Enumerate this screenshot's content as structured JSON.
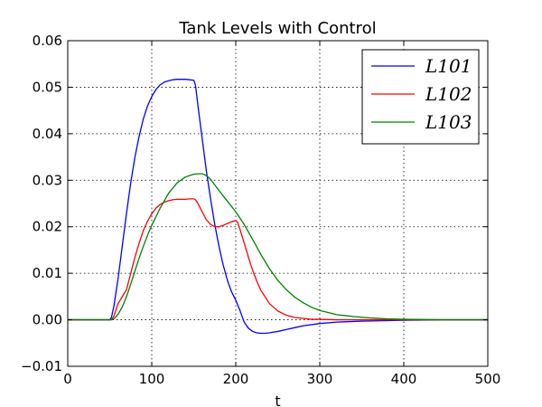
{
  "chart_data": {
    "type": "line",
    "title": "Tank Levels with Control",
    "xlabel": "t",
    "ylabel": "",
    "xlim": [
      0,
      500
    ],
    "ylim": [
      -0.01,
      0.06
    ],
    "xticks": [
      0,
      100,
      200,
      300,
      400,
      500
    ],
    "yticks": [
      -0.01,
      0.0,
      0.01,
      0.02,
      0.03,
      0.04,
      0.05,
      0.06
    ],
    "xtick_labels": [
      "0",
      "100",
      "200",
      "300",
      "400",
      "500"
    ],
    "ytick_labels": [
      "−0.01",
      "0.00",
      "0.01",
      "0.02",
      "0.03",
      "0.04",
      "0.05",
      "0.06"
    ],
    "grid": true,
    "legend_position": "top-right",
    "series": [
      {
        "name": "L101",
        "color": "#0000ff",
        "x": [
          0,
          50,
          52,
          55,
          60,
          65,
          70,
          75,
          80,
          85,
          90,
          95,
          100,
          105,
          110,
          115,
          120,
          125,
          130,
          135,
          140,
          145,
          150,
          152,
          155,
          160,
          165,
          170,
          175,
          180,
          185,
          190,
          195,
          200,
          205,
          210,
          215,
          220,
          225,
          230,
          235,
          240,
          250,
          260,
          270,
          280,
          300,
          320,
          350,
          400,
          450,
          500
        ],
        "y": [
          0,
          0,
          0.0005,
          0.003,
          0.009,
          0.016,
          0.023,
          0.0295,
          0.035,
          0.0395,
          0.0432,
          0.046,
          0.048,
          0.0495,
          0.0505,
          0.0511,
          0.0514,
          0.0516,
          0.0517,
          0.0517,
          0.0517,
          0.0516,
          0.0515,
          0.0505,
          0.046,
          0.039,
          0.032,
          0.026,
          0.0205,
          0.0158,
          0.0118,
          0.0085,
          0.006,
          0.0042,
          0.002,
          -0.0005,
          -0.0018,
          -0.0025,
          -0.0028,
          -0.0029,
          -0.0029,
          -0.0028,
          -0.0025,
          -0.0021,
          -0.0017,
          -0.0013,
          -0.0008,
          -0.0005,
          -0.0003,
          -0.0001,
          0,
          0
        ]
      },
      {
        "name": "L102",
        "color": "#ff0000",
        "x": [
          0,
          52,
          55,
          60,
          65,
          70,
          75,
          80,
          85,
          90,
          95,
          100,
          105,
          110,
          115,
          120,
          125,
          130,
          135,
          140,
          145,
          150,
          152,
          155,
          160,
          165,
          170,
          175,
          180,
          185,
          190,
          195,
          200,
          202,
          205,
          210,
          215,
          220,
          225,
          230,
          240,
          250,
          260,
          270,
          280,
          290,
          300,
          320,
          350,
          400,
          450,
          500
        ],
        "y": [
          0,
          0,
          0.0008,
          0.0035,
          0.005,
          0.0065,
          0.01,
          0.0135,
          0.0165,
          0.0192,
          0.0212,
          0.0228,
          0.024,
          0.0248,
          0.0253,
          0.0256,
          0.0258,
          0.0259,
          0.0259,
          0.0259,
          0.026,
          0.026,
          0.0258,
          0.025,
          0.0232,
          0.0215,
          0.0205,
          0.02,
          0.02,
          0.0203,
          0.0207,
          0.0211,
          0.0213,
          0.021,
          0.0195,
          0.0165,
          0.0135,
          0.0107,
          0.0083,
          0.0063,
          0.0035,
          0.0019,
          0.001,
          0.0005,
          0.0003,
          0.0001,
          0.0001,
          0,
          0,
          0,
          0,
          0
        ]
      },
      {
        "name": "L103",
        "color": "#008000",
        "x": [
          0,
          52,
          55,
          60,
          65,
          70,
          75,
          80,
          85,
          90,
          95,
          100,
          110,
          120,
          130,
          140,
          150,
          155,
          160,
          165,
          170,
          180,
          190,
          200,
          210,
          220,
          230,
          240,
          250,
          260,
          270,
          280,
          290,
          300,
          320,
          340,
          360,
          380,
          400,
          450,
          500
        ],
        "y": [
          0,
          0,
          0.0002,
          0.0012,
          0.0028,
          0.005,
          0.0077,
          0.0105,
          0.0133,
          0.0158,
          0.0182,
          0.0203,
          0.024,
          0.0272,
          0.0294,
          0.0307,
          0.0313,
          0.0314,
          0.0314,
          0.031,
          0.0302,
          0.0278,
          0.0255,
          0.0232,
          0.0205,
          0.0173,
          0.014,
          0.011,
          0.0085,
          0.0065,
          0.0049,
          0.0037,
          0.0027,
          0.002,
          0.0011,
          0.0007,
          0.0004,
          0.0002,
          0.0001,
          0,
          0
        ]
      }
    ]
  }
}
